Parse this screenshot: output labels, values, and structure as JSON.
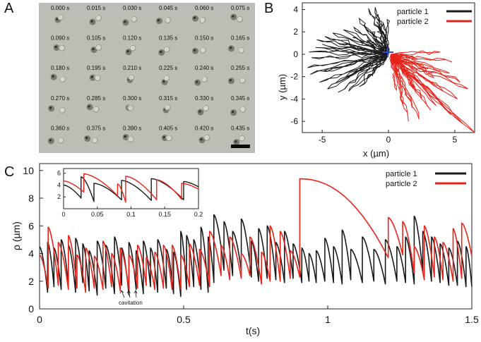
{
  "figure": {
    "panels": {
      "a": "A",
      "b": "B",
      "c": "C"
    }
  },
  "panel_a": {
    "timestamps": [
      [
        "0.000 s",
        "0.015 s",
        "0.030 s",
        "0.045 s",
        "0.060 s",
        "0.075 s"
      ],
      [
        "0.090 s",
        "0.105 s",
        "0.120 s",
        "0.135 s",
        "0.150 s",
        "0.165 s"
      ],
      [
        "0.180 s",
        "0.195 s",
        "0.210 s",
        "0.225 s",
        "0.240 s",
        "0.255 s"
      ],
      [
        "0.270 s",
        "0.285 s",
        "0.300 s",
        "0.315 s",
        "0.330 s",
        "0.345 s"
      ],
      [
        "0.360 s",
        "0.375 s",
        "0.390 s",
        "0.405 s",
        "0.420 s",
        "0.435 s"
      ]
    ],
    "frame_bg_color": "#bdbdb5",
    "scale_bar": true
  },
  "chart_data": [
    {
      "id": "B",
      "type": "line",
      "xlabel": "x (µm)",
      "ylabel": "y (µm)",
      "xlim": [
        -6.5,
        6.5
      ],
      "ylim": [
        -7,
        4.6
      ],
      "xticks": [
        -5,
        0,
        5
      ],
      "yticks": [
        4,
        2,
        0,
        -2,
        -4,
        -6
      ],
      "legend": {
        "position": "top-right",
        "entries": [
          "particle 1",
          "particle 2"
        ]
      },
      "series": [
        {
          "name": "particle 1",
          "color": "#1a1a1a",
          "hub": [
            0,
            0
          ],
          "tips": [
            [
              -6.1,
              -1.2
            ],
            [
              -5.8,
              -0.3
            ],
            [
              -5.5,
              0.6
            ],
            [
              -5.9,
              -1.8
            ],
            [
              -5.2,
              -2.5
            ],
            [
              -4.6,
              -3.1
            ],
            [
              -3.8,
              -3.4
            ],
            [
              -3.0,
              -3.3
            ],
            [
              -2.2,
              -2.9
            ],
            [
              -1.6,
              -2.2
            ],
            [
              -6.0,
              0.2
            ],
            [
              -5.4,
              1.3
            ],
            [
              -4.8,
              1.6
            ],
            [
              -4.2,
              1.9
            ],
            [
              -3.4,
              2.2
            ],
            [
              -2.6,
              2.4
            ],
            [
              -1.8,
              2.6
            ],
            [
              -1.2,
              2.0
            ],
            [
              -4.9,
              -1.5
            ],
            [
              -4.0,
              -2.6
            ],
            [
              -3.2,
              -2.0
            ],
            [
              -5.0,
              0.9
            ],
            [
              -3.8,
              1.0
            ],
            [
              -2.7,
              1.5
            ],
            [
              -1.6,
              1.2
            ],
            [
              -2.2,
              3.2
            ],
            [
              -1.5,
              4.1
            ],
            [
              -0.8,
              3.6
            ],
            [
              -0.4,
              2.8
            ],
            [
              -0.1,
              3.1
            ],
            [
              -1.0,
              4.2
            ],
            [
              -0.9,
              2.9
            ]
          ]
        },
        {
          "name": "particle 2",
          "color": "#e8231a",
          "hub": [
            0.2,
            0
          ],
          "tips": [
            [
              6.5,
              -7.0
            ],
            [
              5.6,
              -6.2
            ],
            [
              4.7,
              -5.4
            ],
            [
              3.6,
              -4.6
            ],
            [
              2.3,
              -5.8
            ],
            [
              1.5,
              -6.0
            ],
            [
              1.1,
              -4.4
            ],
            [
              0.6,
              -3.2
            ],
            [
              0.9,
              -2.6
            ],
            [
              1.4,
              -1.9
            ],
            [
              3.4,
              -2.1
            ],
            [
              4.6,
              -1.7
            ],
            [
              5.4,
              -2.5
            ],
            [
              6.0,
              -3.1
            ],
            [
              5.2,
              -4.0
            ],
            [
              4.1,
              -3.3
            ],
            [
              2.5,
              -3.9
            ],
            [
              3.0,
              -1.3
            ],
            [
              4.8,
              -0.7
            ],
            [
              2.2,
              -0.4
            ],
            [
              3.9,
              0.2
            ],
            [
              1.2,
              -1.2
            ],
            [
              2.0,
              -3.0
            ],
            [
              3.2,
              -5.0
            ],
            [
              1.8,
              -4.8
            ]
          ]
        }
      ]
    },
    {
      "id": "C",
      "type": "line",
      "xlabel": "t(s)",
      "ylabel": "ρ (µm)",
      "xlim": [
        0,
        1.5
      ],
      "ylim": [
        0,
        10.5
      ],
      "xticks": [
        0,
        0.5,
        1,
        1.5
      ],
      "xtick_labels": [
        "0",
        "0.5",
        "1",
        "1.5"
      ],
      "yticks": [
        0,
        2,
        4,
        6,
        8,
        10
      ],
      "legend": {
        "position": "top-right",
        "entries": [
          "particle 1",
          "particle 2"
        ]
      },
      "annotation": "cavitation",
      "series": [
        {
          "name": "particle 1",
          "color": "#1a1a1a",
          "events": [
            [
              0.0,
              4.5,
              1.2
            ],
            [
              0.028,
              4.8,
              1.6
            ],
            [
              0.05,
              4.4,
              1.4
            ],
            [
              0.075,
              5.0,
              1.8
            ],
            [
              0.1,
              4.6,
              1.2
            ],
            [
              0.125,
              5.1,
              1.9
            ],
            [
              0.15,
              4.7,
              1.3
            ],
            [
              0.172,
              4.2,
              1.0
            ],
            [
              0.2,
              4.9,
              1.5
            ],
            [
              0.23,
              4.6,
              1.1
            ],
            [
              0.26,
              5.2,
              1.7
            ],
            [
              0.285,
              4.4,
              1.0
            ],
            [
              0.31,
              4.8,
              1.4
            ],
            [
              0.335,
              4.2,
              1.1
            ],
            [
              0.36,
              4.9,
              1.6
            ],
            [
              0.385,
              4.4,
              1.2
            ],
            [
              0.41,
              5.0,
              1.5
            ],
            [
              0.44,
              4.3,
              1.1
            ],
            [
              0.465,
              4.1,
              0.9
            ],
            [
              0.49,
              5.6,
              1.4
            ],
            [
              0.51,
              5.3,
              1.6
            ],
            [
              0.535,
              5.0,
              1.4
            ],
            [
              0.56,
              5.9,
              1.2
            ],
            [
              0.585,
              5.2,
              1.9
            ],
            [
              0.605,
              6.8,
              2.8
            ],
            [
              0.64,
              6.3,
              2.4
            ],
            [
              0.67,
              5.6,
              2.8
            ],
            [
              0.7,
              6.5,
              2.3
            ],
            [
              0.735,
              4.9,
              2.0
            ],
            [
              0.76,
              5.8,
              2.2
            ],
            [
              0.79,
              6.0,
              2.1
            ],
            [
              0.82,
              4.8,
              1.9
            ],
            [
              0.85,
              5.6,
              2.2
            ],
            [
              0.88,
              4.7,
              1.9
            ],
            [
              0.91,
              4.4,
              2.0
            ],
            [
              0.935,
              4.0,
              1.9
            ],
            [
              0.96,
              4.2,
              2.0
            ],
            [
              0.99,
              5.1,
              1.9
            ],
            [
              1.02,
              4.5,
              1.8
            ],
            [
              1.05,
              5.7,
              2.1
            ],
            [
              1.08,
              4.3,
              1.9
            ],
            [
              1.12,
              5.2,
              2.0
            ],
            [
              1.16,
              4.3,
              1.8
            ],
            [
              1.2,
              5.0,
              2.0
            ],
            [
              1.24,
              4.5,
              1.9
            ],
            [
              1.27,
              5.2,
              1.8
            ],
            [
              1.3,
              6.7,
              2.6
            ],
            [
              1.33,
              5.6,
              2.0
            ],
            [
              1.36,
              5.2,
              1.9
            ],
            [
              1.39,
              4.7,
              1.7
            ],
            [
              1.42,
              4.4,
              1.7
            ],
            [
              1.45,
              4.9,
              1.6
            ],
            [
              1.48,
              4.5,
              1.6
            ],
            [
              1.5,
              4.0,
              1.9
            ]
          ]
        },
        {
          "name": "particle 2",
          "color": "#e8231a",
          "events": [
            [
              0.0,
              3.9,
              1.5
            ],
            [
              0.03,
              5.9,
              1.7
            ],
            [
              0.065,
              4.8,
              1.4
            ],
            [
              0.1,
              5.3,
              1.5
            ],
            [
              0.13,
              3.9,
              1.2
            ],
            [
              0.16,
              4.4,
              1.5
            ],
            [
              0.19,
              3.8,
              1.4
            ],
            [
              0.22,
              4.9,
              1.6
            ],
            [
              0.25,
              4.0,
              1.3
            ],
            [
              0.28,
              4.4,
              1.4
            ],
            [
              0.31,
              3.9,
              1.5
            ],
            [
              0.34,
              4.6,
              1.7
            ],
            [
              0.37,
              3.7,
              1.4
            ],
            [
              0.4,
              4.1,
              1.5
            ],
            [
              0.43,
              4.6,
              1.4
            ],
            [
              0.46,
              4.6,
              1.4
            ],
            [
              0.49,
              3.9,
              1.6
            ],
            [
              0.52,
              4.7,
              1.7
            ],
            [
              0.555,
              4.3,
              1.6
            ],
            [
              0.59,
              5.6,
              2.4
            ],
            [
              0.63,
              4.6,
              2.1
            ],
            [
              0.66,
              5.2,
              2.2
            ],
            [
              0.7,
              4.0,
              2.4
            ],
            [
              0.73,
              5.2,
              1.8
            ],
            [
              0.77,
              4.1,
              2.0
            ],
            [
              0.8,
              6.0,
              2.0
            ],
            [
              0.835,
              5.6,
              2.2
            ],
            [
              0.87,
              4.2,
              2.3
            ],
            [
              0.903,
              9.4,
              3.7
            ],
            [
              1.21,
              6.6,
              3.9
            ],
            [
              1.26,
              6.3,
              2.6
            ],
            [
              1.3,
              4.5,
              2.1
            ],
            [
              1.335,
              6.0,
              2.3
            ],
            [
              1.37,
              5.2,
              2.1
            ],
            [
              1.4,
              4.8,
              2.0
            ],
            [
              1.435,
              5.8,
              2.2
            ],
            [
              1.465,
              6.2,
              3.8
            ],
            [
              1.5,
              4.6,
              3.2
            ]
          ]
        }
      ]
    },
    {
      "id": "C-inset",
      "type": "line",
      "xlim": [
        0,
        0.2
      ],
      "ylim": [
        0,
        6.8
      ],
      "xticks": [
        0,
        0.05,
        0.1,
        0.15,
        0.2
      ],
      "xtick_labels": [
        "0",
        "0.05",
        "0.1",
        "0.15",
        "0.2"
      ],
      "yticks": [
        2,
        4,
        6
      ],
      "series": [
        {
          "name": "particle 1",
          "color": "#1a1a1a",
          "events": [
            [
              0.0,
              4.0,
              1.8
            ],
            [
              0.026,
              5.4,
              1.2
            ],
            [
              0.045,
              4.3,
              1.5
            ],
            [
              0.086,
              4.8,
              1.4
            ],
            [
              0.13,
              5.1,
              1.5
            ],
            [
              0.178,
              4.6,
              3.7
            ]
          ]
        },
        {
          "name": "particle 2",
          "color": "#e8231a",
          "events": [
            [
              0.0,
              4.7,
              2.8
            ],
            [
              0.03,
              5.9,
              2.2
            ],
            [
              0.08,
              4.2,
              1.1
            ],
            [
              0.092,
              5.5,
              1.5
            ],
            [
              0.138,
              4.9,
              1.6
            ],
            [
              0.175,
              4.3,
              3.3
            ]
          ]
        }
      ]
    }
  ]
}
